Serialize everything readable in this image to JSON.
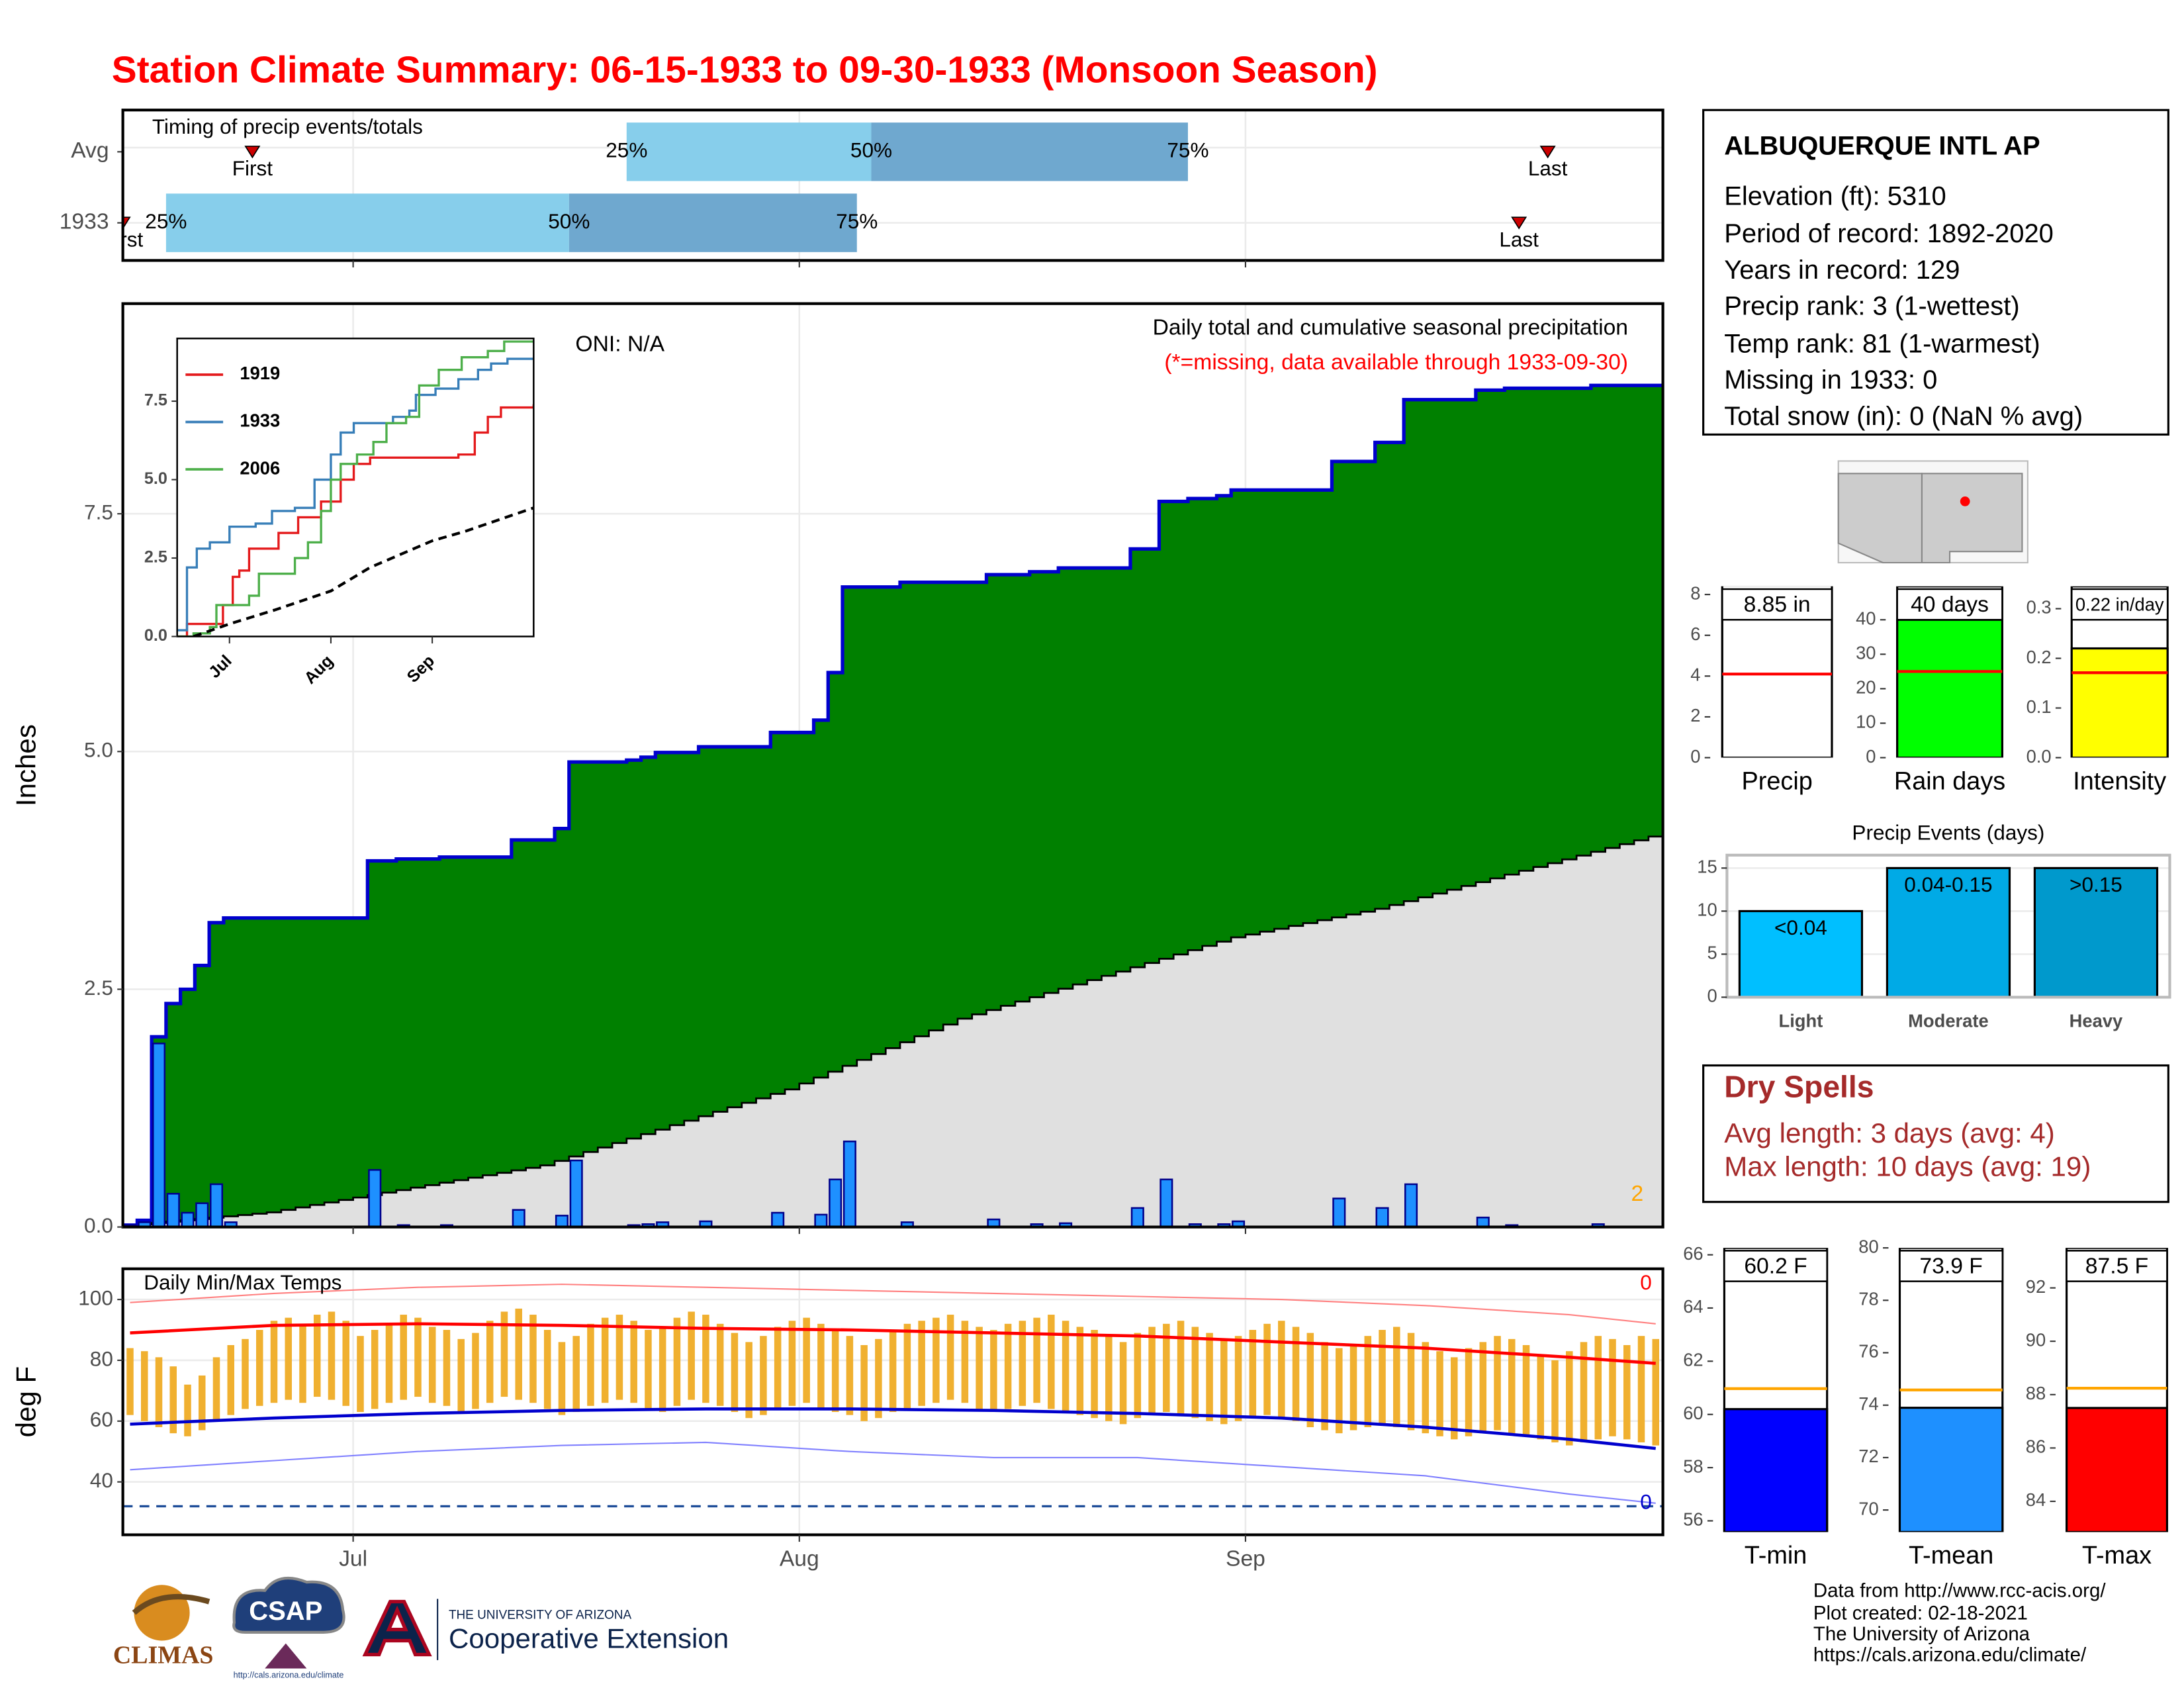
{
  "title": "Station Climate Summary: 06-15-1933 to 09-30-1933 (Monsoon Season)",
  "info": {
    "station": "ALBUQUERQUE INTL AP",
    "lines": [
      "Elevation (ft): 5310",
      "Period of record: 1892-2020",
      "Years in record: 129",
      "Precip rank: 3 (1-wettest)",
      "Temp rank: 81 (1-warmest)",
      "Missing in 1933: 0",
      "Total snow (in): 0 (NaN % avg)"
    ]
  },
  "dry_spells": {
    "title": "Dry Spells",
    "lines": [
      "Avg length: 3 days (avg: 4)",
      "Max length: 10 days (avg: 19)"
    ]
  },
  "footer": {
    "credits": [
      "Data from http://www.rcc-acis.org/",
      "Plot created: 02-18-2021",
      "The University of Arizona",
      "https://cals.arizona.edu/climate/"
    ],
    "logos": {
      "climas": "CLIMAS",
      "csap": "CSAP",
      "csap_url": "http://cals.arizona.edu/climate",
      "ua": "THE UNIVERSITY OF ARIZONA",
      "coop": "Cooperative Extension"
    }
  },
  "chart_data": [
    {
      "type": "timeline",
      "title": "Timing of precip events/totals",
      "categories": [
        "Avg",
        "1933"
      ],
      "first": [
        9,
        0
      ],
      "quartiles": [
        [
          35,
          52,
          74
        ],
        [
          3,
          31,
          51
        ]
      ],
      "last": [
        99,
        97
      ],
      "first_label": "First",
      "last_label": "Last",
      "quartile_labels": [
        "25%",
        "50%",
        "75%"
      ],
      "colors": [
        "#87ceeb",
        "#6fa8cf"
      ],
      "marker_color": "#cc0000",
      "xlim": [
        0,
        107
      ],
      "xticks": [
        16,
        47,
        78
      ],
      "xtick_labels": false,
      "grid": true
    },
    {
      "type": "step",
      "ylabel": "Inches",
      "oni": "ONI: N/A",
      "subtitle": "Daily total and cumulative seasonal precipitation",
      "note": "(*=missing, data available through 1933-09-30)",
      "missing_count": 2,
      "daily": [
        0.02,
        0.05,
        1.93,
        0.35,
        0.15,
        0.25,
        0.45,
        0.05,
        0,
        0,
        0,
        0,
        0,
        0,
        0,
        0,
        0,
        0.6,
        0,
        0.02,
        0,
        0,
        0.02,
        0,
        0,
        0,
        0,
        0.18,
        0,
        0,
        0.12,
        0.7,
        0,
        0,
        0,
        0.02,
        0.03,
        0.05,
        0,
        0,
        0.06,
        0,
        0,
        0,
        0,
        0.15,
        0,
        0,
        0.13,
        0.5,
        0.9,
        0,
        0,
        0,
        0.05,
        0,
        0,
        0,
        0,
        0,
        0.08,
        0,
        0,
        0.03,
        0,
        0.04,
        0,
        0,
        0,
        0,
        0.2,
        0,
        0.5,
        0,
        0.03,
        0,
        0.03,
        0.06,
        0,
        0,
        0,
        0,
        0,
        0,
        0.3,
        0,
        0,
        0.2,
        0,
        0.45,
        0,
        0,
        0,
        0,
        0.1,
        0,
        0.02,
        0,
        0,
        0,
        0,
        0,
        0.03,
        0,
        0,
        0,
        0
      ],
      "normal_daily": [
        0.014,
        0.014,
        0.014,
        0.014,
        0.014,
        0.014,
        0.014,
        0.014,
        0.014,
        0.014,
        0.014,
        0.026,
        0.026,
        0.026,
        0.026,
        0.026,
        0.026,
        0.026,
        0.026,
        0.026,
        0.026,
        0.026,
        0.026,
        0.026,
        0.026,
        0.026,
        0.026,
        0.026,
        0.026,
        0.026,
        0.047,
        0.047,
        0.047,
        0.047,
        0.047,
        0.047,
        0.047,
        0.047,
        0.047,
        0.047,
        0.047,
        0.047,
        0.047,
        0.047,
        0.047,
        0.047,
        0.047,
        0.062,
        0.062,
        0.062,
        0.062,
        0.062,
        0.062,
        0.062,
        0.062,
        0.062,
        0.062,
        0.062,
        0.062,
        0.045,
        0.045,
        0.045,
        0.045,
        0.045,
        0.045,
        0.045,
        0.045,
        0.045,
        0.045,
        0.045,
        0.045,
        0.045,
        0.045,
        0.045,
        0.045,
        0.045,
        0.045,
        0.045,
        0.03,
        0.03,
        0.03,
        0.03,
        0.03,
        0.03,
        0.03,
        0.03,
        0.03,
        0.03,
        0.04,
        0.04,
        0.04,
        0.04,
        0.04,
        0.04,
        0.04,
        0.04,
        0.04,
        0.04,
        0.04,
        0.04,
        0.04,
        0.04,
        0.04,
        0.04,
        0.04,
        0.04,
        0.04
      ],
      "colors": {
        "cumulative": "#008000",
        "line": "#0000cd",
        "normal": "#e0e0e0",
        "bars": "#1e90ff",
        "note": "#ff0000",
        "missing": "#ffa500"
      },
      "xlim": [
        0,
        107
      ],
      "xticks": [
        16,
        47,
        78
      ],
      "xtick_labels": false,
      "ylim": [
        0,
        9.71
      ],
      "yticks": [
        {
          "value": 0,
          "label": "0.0"
        },
        2.5,
        {
          "value": 5,
          "label": "5.0"
        },
        7.5
      ],
      "grid": true
    },
    {
      "type": "line",
      "xlim": [
        0,
        109
      ],
      "xticks": [
        {
          "value": 16,
          "label": "Jul"
        },
        {
          "value": 47,
          "label": "Aug"
        },
        {
          "value": 78,
          "label": "Sep"
        }
      ],
      "ylim": [
        0,
        9.5
      ],
      "yticks": [
        {
          "value": 0,
          "label": "0.0"
        },
        2.5,
        {
          "value": 5,
          "label": "5.0"
        },
        7.5
      ],
      "series": [
        {
          "name": "1919",
          "color": "#e41a1c",
          "step": true,
          "x": [
            0,
            3,
            14,
            17,
            19,
            22,
            31,
            37,
            44,
            50,
            54,
            59,
            86,
            91,
            95,
            99,
            109
          ],
          "values": [
            0,
            0.4,
            1.0,
            1.9,
            2.1,
            2.8,
            3.3,
            3.8,
            4.3,
            5.0,
            5.5,
            5.7,
            5.8,
            6.5,
            7.0,
            7.3,
            7.4
          ]
        },
        {
          "name": "1933",
          "color": "#377eb8",
          "step": true,
          "x": [
            0,
            3,
            6,
            10,
            16,
            24,
            29,
            36,
            42,
            47,
            50,
            54,
            66,
            71,
            73,
            79,
            86,
            92,
            96,
            101,
            109
          ],
          "values": [
            0.2,
            2.2,
            2.8,
            3.0,
            3.5,
            3.6,
            4.0,
            4.1,
            5.0,
            5.8,
            6.5,
            6.8,
            7.0,
            7.2,
            7.7,
            7.9,
            8.2,
            8.5,
            8.7,
            8.85,
            8.85
          ]
        },
        {
          "name": "2006",
          "color": "#4daf4a",
          "step": true,
          "x": [
            0,
            5,
            10,
            12,
            22,
            25,
            36,
            40,
            44,
            47,
            50,
            55,
            60,
            64,
            70,
            74,
            80,
            87,
            95,
            100,
            109
          ],
          "values": [
            0,
            0.1,
            0.3,
            1.0,
            1.3,
            2.0,
            2.5,
            3.0,
            4.0,
            5.0,
            5.5,
            5.8,
            6.2,
            6.8,
            7.0,
            8.0,
            8.5,
            8.9,
            9.1,
            9.4,
            9.4
          ]
        },
        {
          "color": "#000000",
          "dashed": true,
          "x": [
            5,
            16,
            30,
            47,
            59,
            78,
            88,
            109
          ],
          "values": [
            0,
            0.4,
            0.85,
            1.45,
            2.2,
            3.05,
            3.35,
            4.1
          ]
        }
      ]
    },
    {
      "type": "range",
      "title": "Daily Min/Max Temps",
      "ylabel": "deg F",
      "tmax": [
        84,
        83,
        81,
        78,
        72,
        75,
        81,
        85,
        87,
        90,
        93,
        94,
        92,
        95,
        96,
        93,
        88,
        90,
        92,
        95,
        94,
        91,
        90,
        87,
        89,
        93,
        96,
        97,
        95,
        90,
        86,
        88,
        92,
        94,
        95,
        93,
        90,
        91,
        94,
        96,
        95,
        92,
        89,
        86,
        88,
        91,
        93,
        94,
        92,
        90,
        88,
        85,
        87,
        90,
        92,
        93,
        94,
        95,
        93,
        91,
        90,
        92,
        93,
        94,
        95,
        93,
        91,
        90,
        88,
        86,
        89,
        91,
        92,
        93,
        91,
        89,
        87,
        88,
        90,
        92,
        93,
        91,
        89,
        86,
        84,
        85,
        88,
        90,
        91,
        89,
        86,
        83,
        81,
        84,
        86,
        88,
        87,
        85,
        82,
        80,
        83,
        86,
        88,
        87,
        85,
        88,
        87
      ],
      "tmin": [
        62,
        60,
        58,
        56,
        55,
        57,
        60,
        62,
        64,
        65,
        66,
        67,
        66,
        68,
        67,
        65,
        63,
        64,
        66,
        67,
        68,
        66,
        65,
        63,
        64,
        66,
        68,
        67,
        66,
        64,
        62,
        63,
        65,
        66,
        67,
        66,
        64,
        63,
        65,
        67,
        66,
        65,
        63,
        61,
        62,
        64,
        65,
        66,
        64,
        63,
        62,
        60,
        61,
        63,
        64,
        65,
        66,
        67,
        66,
        64,
        63,
        64,
        65,
        66,
        64,
        63,
        62,
        61,
        60,
        59,
        61,
        62,
        63,
        62,
        61,
        60,
        59,
        60,
        61,
        62,
        61,
        60,
        58,
        57,
        56,
        57,
        58,
        59,
        58,
        57,
        56,
        55,
        54,
        55,
        56,
        57,
        56,
        55,
        54,
        53,
        52,
        53,
        54,
        55,
        54,
        53,
        52
      ],
      "normals": {
        "x": [
          0,
          10,
          20,
          30,
          40,
          50,
          60,
          70,
          80,
          90,
          100,
          106
        ],
        "max": [
          89,
          91.5,
          92,
          91.5,
          90.5,
          90,
          89,
          88,
          86,
          84,
          81,
          79
        ],
        "min": [
          59,
          61,
          62.5,
          63.5,
          64,
          64,
          63.5,
          62.5,
          61,
          58,
          54,
          51
        ],
        "record_high": [
          99,
          102,
          104,
          105,
          104,
          103,
          102,
          101,
          100,
          98,
          95,
          92
        ],
        "record_low": [
          44,
          47,
          50,
          52,
          53,
          50,
          48,
          48,
          45,
          42,
          36,
          33
        ]
      },
      "freeze": 32,
      "counts": {
        "above": 0,
        "below": 0
      },
      "colors": {
        "bars": "#f0b030",
        "max": "#ff0000",
        "min": "#0000cd",
        "record_high": "#ff8080",
        "record_low": "#8080ff",
        "freeze": "#1f4e99"
      },
      "xlim": [
        0,
        107
      ],
      "xticks": [
        {
          "value": 16,
          "label": "Jul"
        },
        {
          "value": 47,
          "label": "Aug"
        },
        {
          "value": 78,
          "label": "Sep"
        }
      ],
      "ylim": [
        22.6,
        110.1
      ],
      "yticks": [
        40,
        60,
        80,
        100
      ],
      "grid": true
    },
    {
      "type": "bar",
      "categories": [
        "Precip"
      ],
      "values": [
        8.85
      ],
      "value_labels": [
        "8.85 in"
      ],
      "normal": 4.1,
      "color": "#ffffff",
      "normal_color": "#ff0000",
      "ylim": [
        0,
        8.4
      ],
      "yticks": [
        0,
        2,
        4,
        6,
        8
      ]
    },
    {
      "type": "bar",
      "categories": [
        "Rain days"
      ],
      "values": [
        40
      ],
      "value_labels": [
        "40 days"
      ],
      "normal": 25,
      "color": "#00ff00",
      "normal_color": "#ff0000",
      "ylim": [
        0,
        49.7
      ],
      "yticks": [
        0,
        10,
        20,
        30,
        40
      ]
    },
    {
      "type": "bar",
      "categories": [
        "Intensity"
      ],
      "values": [
        0.22
      ],
      "value_labels": [
        "0.22 in/day"
      ],
      "normal": 0.171,
      "color": "#ffff00",
      "normal_color": "#ff0000",
      "ylim": [
        0,
        0.345
      ],
      "yticks": [
        {
          "value": 0,
          "label": "0.0"
        },
        0.1,
        0.2,
        0.3
      ]
    },
    {
      "type": "bar",
      "title": "Precip Events (days)",
      "categories": [
        "Light",
        "Moderate",
        "Heavy"
      ],
      "values": [
        10,
        15,
        15
      ],
      "bar_labels": [
        "<0.04",
        "0.04-0.15",
        ">0.15"
      ],
      "colors": [
        "#00bfff",
        "#00aae6",
        "#0099cc"
      ],
      "ylim": [
        0,
        16.5
      ],
      "yticks": [
        0,
        5,
        10,
        15
      ],
      "grid": true
    },
    {
      "type": "bar",
      "categories": [
        "T-min"
      ],
      "values": [
        60.2
      ],
      "value_labels": [
        "60.2 F"
      ],
      "normal": 60.97,
      "color": "#0000ff",
      "normal_color": "#ffa500",
      "ylim": [
        55.58,
        66.26
      ],
      "yticks": [
        56,
        58,
        60,
        62,
        64,
        66
      ]
    },
    {
      "type": "bar",
      "categories": [
        "T-mean"
      ],
      "values": [
        73.9
      ],
      "value_labels": [
        "73.9 F"
      ],
      "normal": 74.58,
      "color": "#1e90ff",
      "normal_color": "#ffa500",
      "ylim": [
        69.16,
        80.0
      ],
      "yticks": [
        70,
        72,
        74,
        76,
        78,
        80
      ]
    },
    {
      "type": "bar",
      "categories": [
        "T-max"
      ],
      "values": [
        87.5
      ],
      "value_labels": [
        "87.5 F"
      ],
      "normal": 88.24,
      "color": "#ff0000",
      "normal_color": "#ffa500",
      "ylim": [
        82.85,
        93.5
      ],
      "yticks": [
        84,
        86,
        88,
        90,
        92
      ]
    }
  ]
}
